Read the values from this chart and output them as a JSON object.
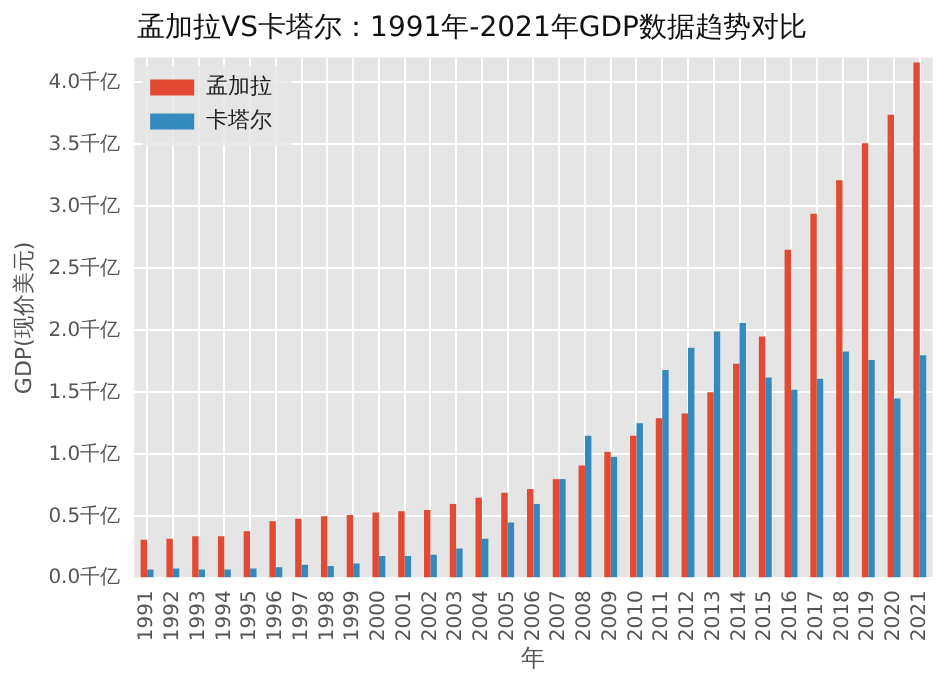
{
  "chart_data": {
    "type": "bar",
    "title": "孟加拉VS卡塔尔：1991年-2021年GDP数据趋势对比",
    "xlabel": "年",
    "ylabel": "GDP(现价美元)",
    "categories": [
      "1991",
      "1992",
      "1993",
      "1994",
      "1995",
      "1996",
      "1997",
      "1998",
      "1999",
      "2000",
      "2001",
      "2002",
      "2003",
      "2004",
      "2005",
      "2006",
      "2007",
      "2008",
      "2009",
      "2010",
      "2011",
      "2012",
      "2013",
      "2014",
      "2015",
      "2016",
      "2017",
      "2018",
      "2019",
      "2020",
      "2021"
    ],
    "series": [
      {
        "name": "孟加拉",
        "color": "#e24a33",
        "values": [
          0.31,
          0.32,
          0.34,
          0.34,
          0.38,
          0.46,
          0.48,
          0.5,
          0.51,
          0.53,
          0.54,
          0.55,
          0.6,
          0.65,
          0.69,
          0.72,
          0.8,
          0.91,
          1.02,
          1.15,
          1.29,
          1.33,
          1.5,
          1.73,
          1.95,
          2.65,
          2.94,
          3.21,
          3.51,
          3.74,
          4.16
        ]
      },
      {
        "name": "卡塔尔",
        "color": "#348abd",
        "values": [
          0.07,
          0.08,
          0.07,
          0.07,
          0.08,
          0.09,
          0.11,
          0.1,
          0.12,
          0.18,
          0.18,
          0.19,
          0.24,
          0.32,
          0.45,
          0.6,
          0.8,
          1.15,
          0.98,
          1.25,
          1.68,
          1.86,
          1.99,
          2.06,
          1.62,
          1.52,
          1.61,
          1.83,
          1.76,
          1.45,
          1.8
        ]
      }
    ],
    "ylim": [
      0,
      4.2
    ],
    "yticks": [
      {
        "value": 0,
        "label": "0.0千亿"
      },
      {
        "value": 0.5,
        "label": "0.5千亿"
      },
      {
        "value": 1,
        "label": "1.0千亿"
      },
      {
        "value": 1.5,
        "label": "1.5千亿"
      },
      {
        "value": 2,
        "label": "2.0千亿"
      },
      {
        "value": 2.5,
        "label": "2.5千亿"
      },
      {
        "value": 3,
        "label": "3.0千亿"
      },
      {
        "value": 3.5,
        "label": "3.5千亿"
      },
      {
        "value": 4,
        "label": "4.0千亿"
      }
    ],
    "grid": true,
    "legend": "top left"
  }
}
